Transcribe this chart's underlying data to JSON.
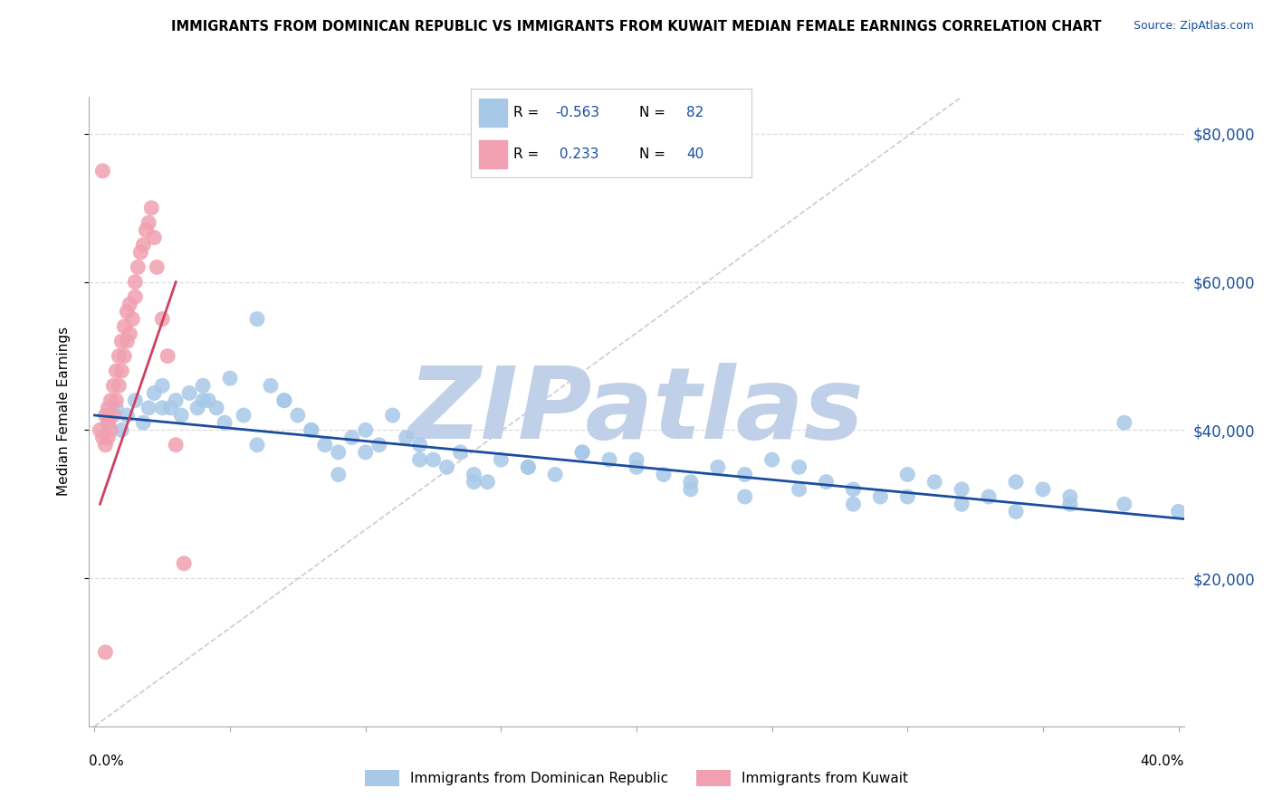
{
  "title": "IMMIGRANTS FROM DOMINICAN REPUBLIC VS IMMIGRANTS FROM KUWAIT MEDIAN FEMALE EARNINGS CORRELATION CHART",
  "source": "Source: ZipAtlas.com",
  "ylabel": "Median Female Earnings",
  "legend_blue_label": "Immigrants from Dominican Republic",
  "legend_pink_label": "Immigrants from Kuwait",
  "yticks": [
    20000,
    40000,
    60000,
    80000
  ],
  "ytick_labels": [
    "$20,000",
    "$40,000",
    "$60,000",
    "$80,000"
  ],
  "xlim": [
    -0.002,
    0.402
  ],
  "ylim": [
    0,
    85000
  ],
  "blue_color": "#A8C8E8",
  "pink_color": "#F0A0B0",
  "trend_blue_color": "#1A4E9C",
  "trend_pink_color": "#D04060",
  "diag_color": "#CCCCCC",
  "watermark": "ZIPatlas",
  "watermark_color": "#C0D0E8",
  "background_color": "#FFFFFF",
  "title_fontsize": 10.5,
  "source_fontsize": 9,
  "grid_color": "#DDDDDD",
  "blue_scatter_x": [
    0.005,
    0.008,
    0.01,
    0.012,
    0.015,
    0.018,
    0.02,
    0.022,
    0.025,
    0.028,
    0.03,
    0.032,
    0.035,
    0.038,
    0.04,
    0.042,
    0.045,
    0.048,
    0.05,
    0.055,
    0.06,
    0.065,
    0.07,
    0.075,
    0.08,
    0.085,
    0.09,
    0.095,
    0.1,
    0.105,
    0.11,
    0.115,
    0.12,
    0.125,
    0.13,
    0.135,
    0.14,
    0.145,
    0.15,
    0.16,
    0.17,
    0.18,
    0.19,
    0.2,
    0.21,
    0.22,
    0.23,
    0.24,
    0.25,
    0.26,
    0.27,
    0.28,
    0.29,
    0.3,
    0.31,
    0.32,
    0.33,
    0.34,
    0.35,
    0.36,
    0.025,
    0.04,
    0.06,
    0.08,
    0.1,
    0.12,
    0.14,
    0.16,
    0.18,
    0.2,
    0.22,
    0.24,
    0.26,
    0.28,
    0.3,
    0.32,
    0.34,
    0.36,
    0.38,
    0.4,
    0.07,
    0.09,
    0.38
  ],
  "blue_scatter_y": [
    41000,
    43000,
    40000,
    42000,
    44000,
    41000,
    43000,
    45000,
    46000,
    43000,
    44000,
    42000,
    45000,
    43000,
    46000,
    44000,
    43000,
    41000,
    47000,
    42000,
    55000,
    46000,
    44000,
    42000,
    40000,
    38000,
    37000,
    39000,
    40000,
    38000,
    42000,
    39000,
    38000,
    36000,
    35000,
    37000,
    34000,
    33000,
    36000,
    35000,
    34000,
    37000,
    36000,
    35000,
    34000,
    33000,
    35000,
    34000,
    36000,
    35000,
    33000,
    32000,
    31000,
    34000,
    33000,
    32000,
    31000,
    33000,
    32000,
    31000,
    43000,
    44000,
    38000,
    40000,
    37000,
    36000,
    33000,
    35000,
    37000,
    36000,
    32000,
    31000,
    32000,
    30000,
    31000,
    30000,
    29000,
    30000,
    30000,
    29000,
    44000,
    34000,
    41000
  ],
  "pink_scatter_x": [
    0.002,
    0.003,
    0.004,
    0.004,
    0.005,
    0.005,
    0.005,
    0.006,
    0.006,
    0.007,
    0.007,
    0.008,
    0.008,
    0.009,
    0.009,
    0.01,
    0.01,
    0.011,
    0.011,
    0.012,
    0.012,
    0.013,
    0.013,
    0.014,
    0.015,
    0.015,
    0.016,
    0.017,
    0.018,
    0.019,
    0.02,
    0.021,
    0.022,
    0.023,
    0.025,
    0.027,
    0.03,
    0.033,
    0.003,
    0.004
  ],
  "pink_scatter_y": [
    40000,
    39000,
    42000,
    38000,
    43000,
    41000,
    39000,
    44000,
    40000,
    46000,
    42000,
    48000,
    44000,
    50000,
    46000,
    52000,
    48000,
    54000,
    50000,
    56000,
    52000,
    57000,
    53000,
    55000,
    60000,
    58000,
    62000,
    64000,
    65000,
    67000,
    68000,
    70000,
    66000,
    62000,
    55000,
    50000,
    38000,
    22000,
    75000,
    10000
  ],
  "blue_trend_x": [
    0.0,
    0.402
  ],
  "blue_trend_y": [
    42000,
    28000
  ],
  "pink_trend_x": [
    0.002,
    0.03
  ],
  "pink_trend_y": [
    30000,
    60000
  ],
  "diag_line_x": [
    0.0,
    0.32
  ],
  "diag_line_y": [
    0.0,
    85000
  ]
}
